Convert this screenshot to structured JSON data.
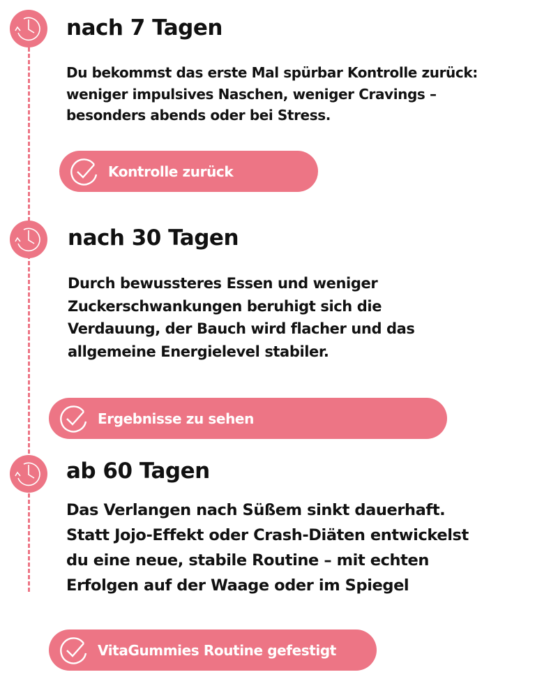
{
  "accent_color": "#ed7585",
  "sections": [
    {
      "title": "nach 7 Tagen",
      "lines": [
        "Du bekommst das erste Mal spürbar Kontrolle zurück:",
        "weniger impulsives Naschen, weniger Cravings –",
        "besonders abends oder bei Stress."
      ],
      "pill": "Kontrolle zurück"
    },
    {
      "title": "nach 30 Tagen",
      "lines": [
        "Durch bewussteres Essen und weniger",
        "Zuckerschwankungen beruhigt sich die",
        "Verdauung, der Bauch wird flacher und das",
        "allgemeine Energielevel stabiler."
      ],
      "pill": "Ergebnisse zu sehen"
    },
    {
      "title": "ab 60 Tagen",
      "lines": [
        "Das Verlangen nach Süßem sinkt dauerhaft.",
        "Statt Jojo-Effekt oder Crash-Diäten entwickelst",
        "du eine neue, stabile Routine – mit echten",
        "Erfolgen auf der Waage oder im Spiegel"
      ],
      "pill": "VitaGummies Routine gefestigt"
    }
  ]
}
